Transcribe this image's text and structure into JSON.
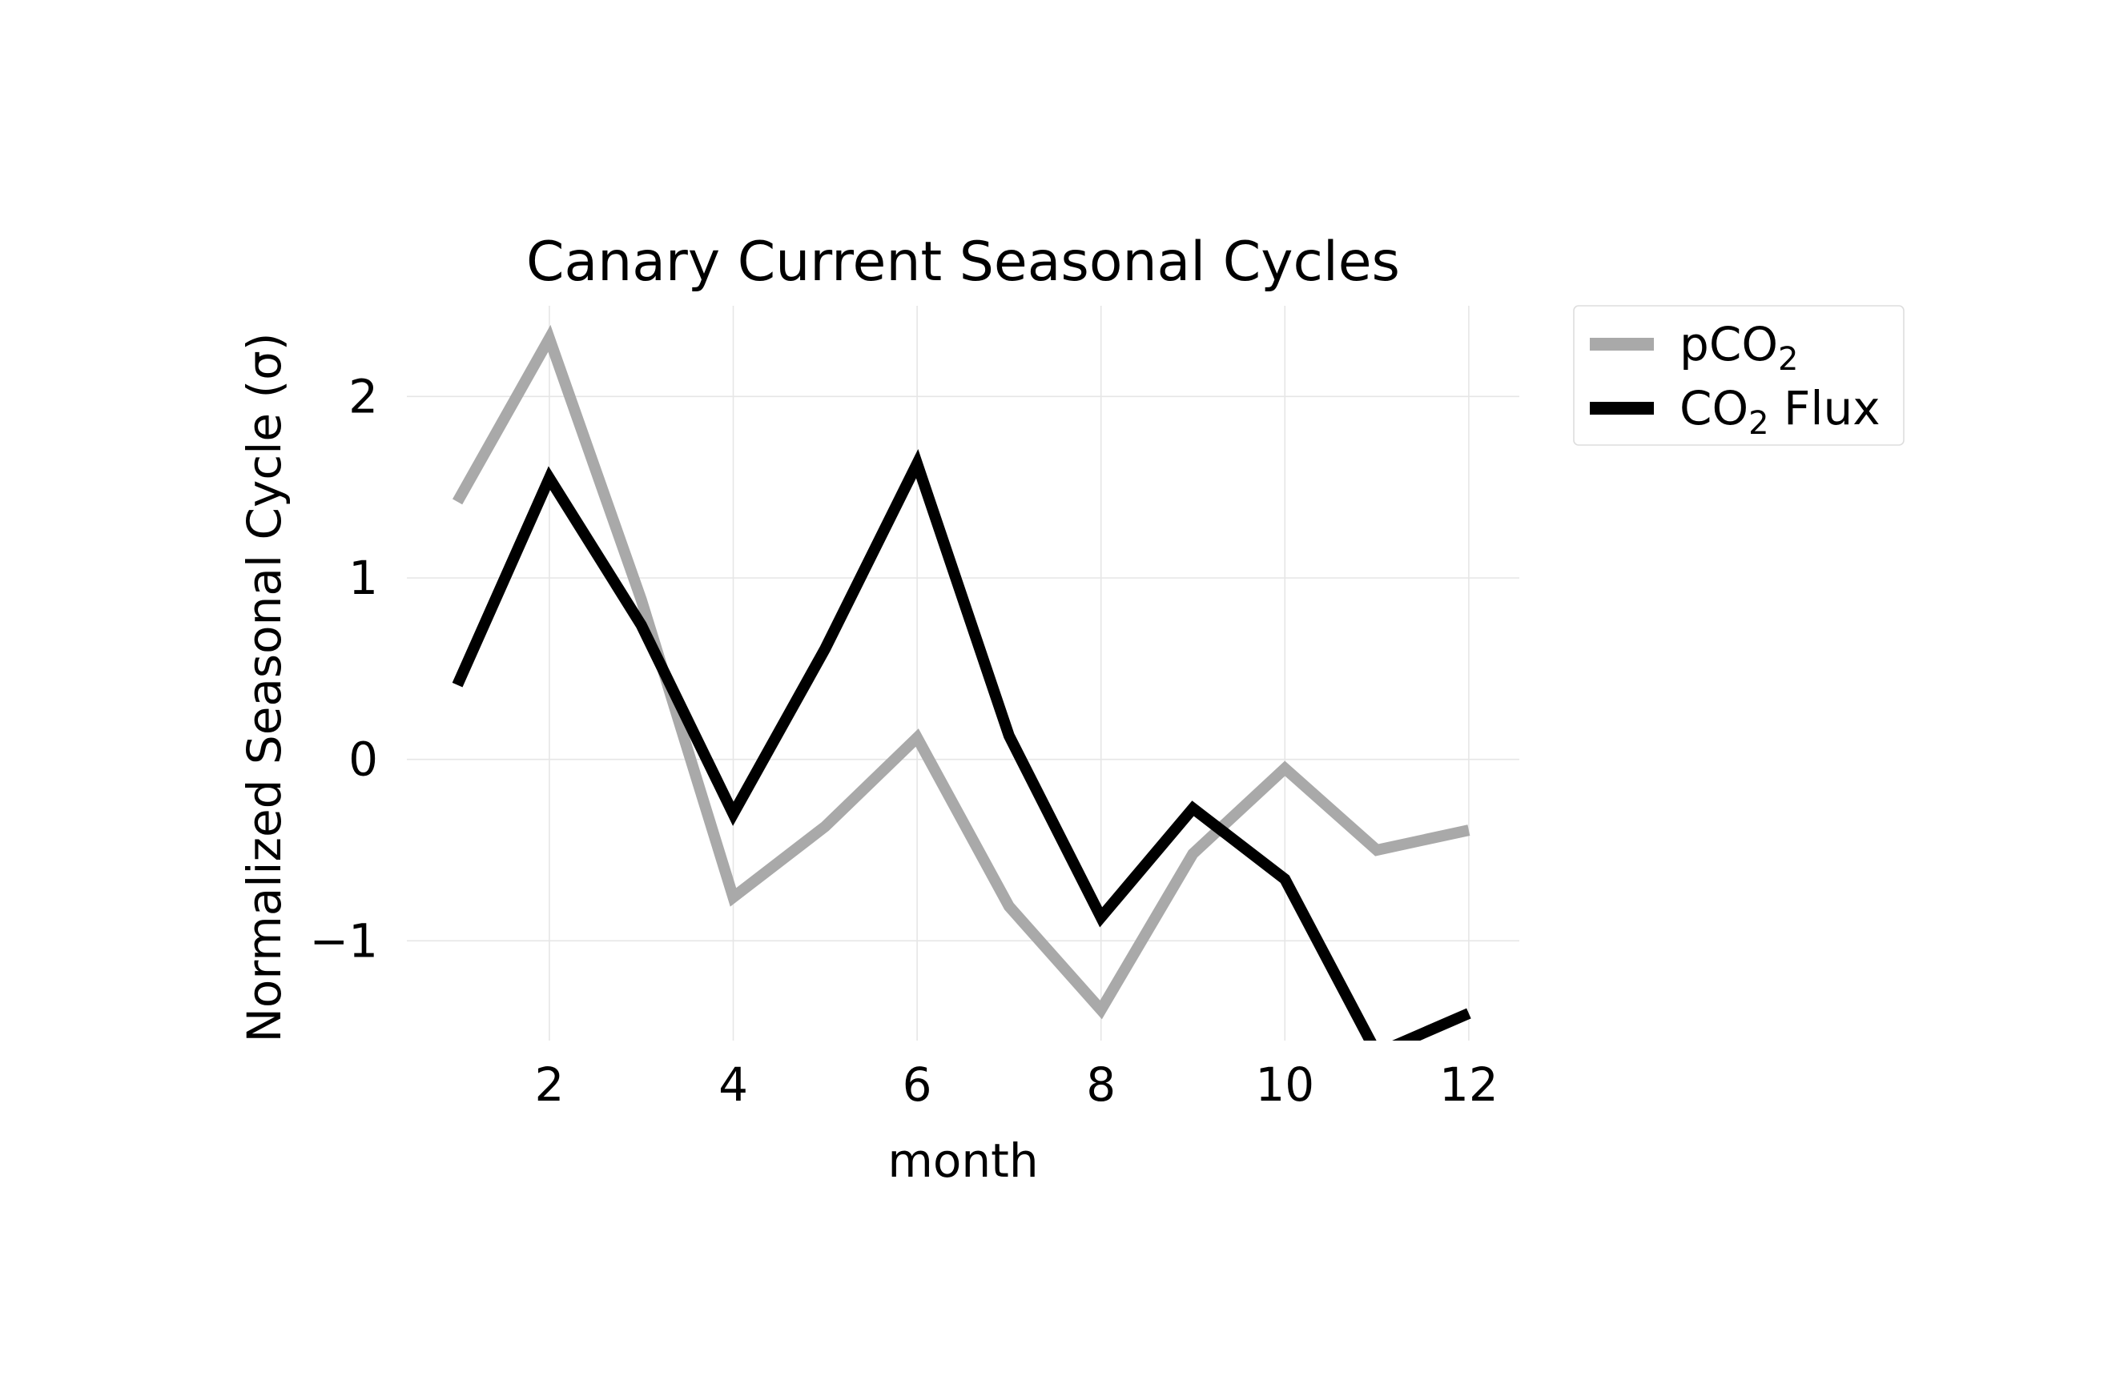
{
  "chart_data": {
    "type": "line",
    "title": "Canary Current Seasonal Cycles",
    "xlabel": "month",
    "ylabel": "Normalized Seasonal Cycle (σ)",
    "x": [
      1,
      2,
      3,
      4,
      5,
      6,
      7,
      8,
      9,
      10,
      11,
      12
    ],
    "xlim": [
      0.45,
      12.55
    ],
    "ylim": [
      -1.55,
      2.5
    ],
    "xticks": [
      2,
      4,
      6,
      8,
      10,
      12
    ],
    "xtick_labels": [
      "2",
      "4",
      "6",
      "8",
      "10",
      "12"
    ],
    "yticks": [
      -1,
      0,
      1,
      2
    ],
    "ytick_labels": [
      "−1",
      "0",
      "1",
      "2"
    ],
    "grid": true,
    "legend_position": "outside-right-top",
    "series": [
      {
        "name": "pCO2",
        "label_main": "pCO",
        "label_sub": "2",
        "label_rest": "",
        "color": "#a9a9a9",
        "values": [
          1.42,
          2.32,
          0.88,
          -0.76,
          -0.37,
          0.12,
          -0.81,
          -1.38,
          -0.52,
          -0.05,
          -0.5,
          -0.39
        ]
      },
      {
        "name": "CO2 Flux",
        "label_main": "CO",
        "label_sub": "2",
        "label_rest": " Flux",
        "color": "#000000",
        "values": [
          0.41,
          1.55,
          0.74,
          -0.3,
          0.61,
          1.63,
          0.13,
          -0.87,
          -0.27,
          -0.66,
          -1.62,
          -1.4
        ]
      }
    ]
  }
}
